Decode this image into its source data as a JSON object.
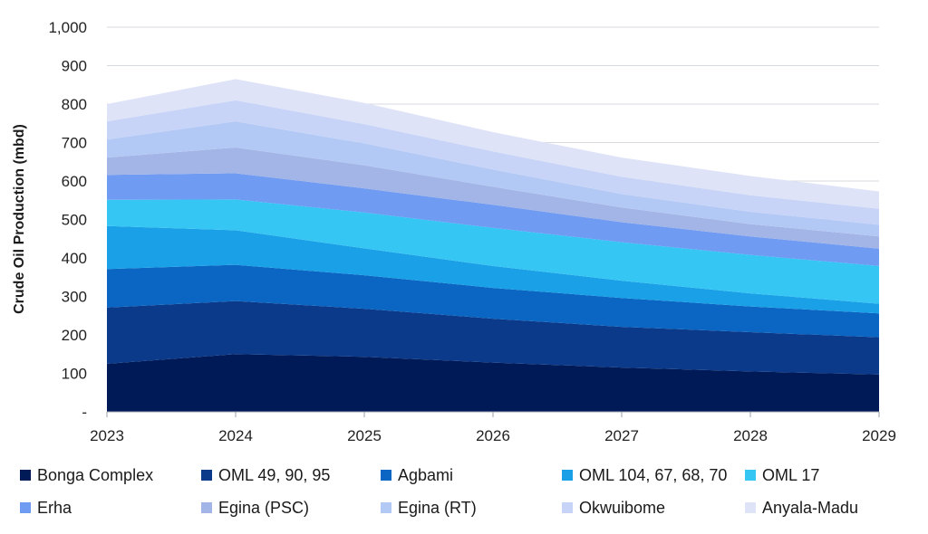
{
  "chart_data": {
    "type": "area",
    "stacked": true,
    "x": [
      "2023",
      "2024",
      "2025",
      "2026",
      "2027",
      "2028",
      "2029"
    ],
    "ylabel": "Crude Oil Production (mbd)",
    "ylim": [
      0,
      1000
    ],
    "yticks": [
      "-",
      "100",
      "200",
      "300",
      "400",
      "500",
      "600",
      "700",
      "800",
      "900",
      "1,000"
    ],
    "grid": true,
    "legend_position": "bottom",
    "series": [
      {
        "name": "Bonga Complex",
        "color": "#001a57",
        "values": [
          125,
          150,
          143,
          128,
          115,
          105,
          97
        ]
      },
      {
        "name": "OML 49, 90, 95",
        "color": "#0b3a8a",
        "values": [
          146,
          138,
          125,
          114,
          106,
          102,
          97
        ]
      },
      {
        "name": "Agbami",
        "color": "#0a66c2",
        "values": [
          100,
          94,
          87,
          80,
          75,
          67,
          62
        ]
      },
      {
        "name": "OML 104, 67, 68, 70",
        "color": "#1aa0e6",
        "values": [
          112,
          90,
          70,
          57,
          45,
          34,
          25
        ]
      },
      {
        "name": "OML 17",
        "color": "#35c6f4",
        "values": [
          68,
          80,
          93,
          99,
          100,
          100,
          98
        ]
      },
      {
        "name": "Erha",
        "color": "#6f9bf2",
        "values": [
          65,
          68,
          63,
          60,
          52,
          48,
          45
        ]
      },
      {
        "name": "Egina (PSC)",
        "color": "#a3b4e6",
        "values": [
          45,
          67,
          60,
          47,
          38,
          32,
          32
        ]
      },
      {
        "name": "Egina (RT)",
        "color": "#b3c9f5",
        "values": [
          47,
          68,
          57,
          45,
          35,
          32,
          30
        ]
      },
      {
        "name": "Okwuibome",
        "color": "#c8d4f7",
        "values": [
          47,
          55,
          50,
          47,
          45,
          43,
          42
        ]
      },
      {
        "name": "Anyala-Madu",
        "color": "#dfe3f7",
        "values": [
          45,
          55,
          55,
          50,
          50,
          50,
          45
        ]
      }
    ]
  }
}
